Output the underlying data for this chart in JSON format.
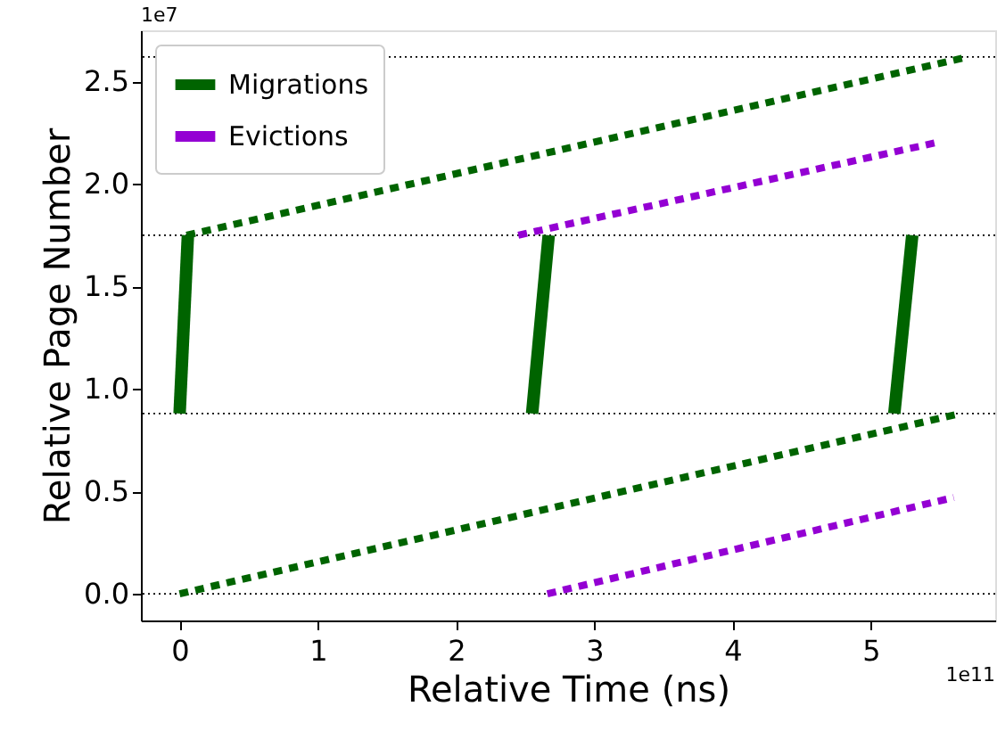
{
  "chart_data": {
    "type": "line",
    "xlabel": "Relative Time (ns)",
    "ylabel": "Relative Page Number",
    "annotations": [
      "1e11",
      "1e7"
    ],
    "xlim": [
      -0.28,
      5.9
    ],
    "xticks": [
      0,
      1,
      2,
      3,
      4,
      5
    ],
    "ylim": [
      -0.13,
      2.75
    ],
    "yticks": [
      {
        "value": 0,
        "label": "0.0"
      },
      0.5,
      {
        "value": 1,
        "label": "1.0"
      },
      1.5,
      {
        "value": 2,
        "label": "2.0"
      },
      2.5
    ],
    "grid": false,
    "legend": "top left",
    "ref_lines": [
      {
        "axis": "y",
        "value": 0,
        "color": "#000000",
        "line_style": "dotted"
      },
      {
        "axis": "y",
        "value": 0.88,
        "color": "#000000",
        "line_style": "dotted"
      },
      {
        "axis": "y",
        "value": 1.75,
        "color": "#000000",
        "line_style": "dotted"
      },
      {
        "axis": "y",
        "value": 2.62,
        "color": "#000000",
        "line_style": "dotted"
      }
    ],
    "series": [
      {
        "name": "Migrations",
        "color": "#006400",
        "line_style": "solid",
        "x": [
          0,
          0.06
        ],
        "values": [
          0.88,
          1.75
        ]
      },
      {
        "name": "Evictions",
        "color": "#9400d3",
        "line_style": "dashed",
        "x": [
          2.66,
          5.6
        ],
        "values": [
          0,
          0.47
        ]
      },
      {
        "color": "#9400d3",
        "line_style": "dashed",
        "x": [
          2.45,
          5.46
        ],
        "values": [
          1.75,
          2.2
        ]
      },
      {
        "color": "#006400",
        "line_style": "dashed",
        "x": [
          0,
          5.65
        ],
        "values": [
          0,
          0.88
        ]
      },
      {
        "color": "#006400",
        "line_style": "dashed",
        "x": [
          0.05,
          5.7
        ],
        "values": [
          1.75,
          2.62
        ]
      },
      {
        "color": "#006400",
        "line_style": "solid",
        "x": [
          2.55,
          2.67
        ],
        "values": [
          0.88,
          1.75
        ]
      },
      {
        "color": "#006400",
        "line_style": "solid",
        "x": [
          5.17,
          5.3
        ],
        "values": [
          0.88,
          1.75
        ]
      }
    ]
  }
}
